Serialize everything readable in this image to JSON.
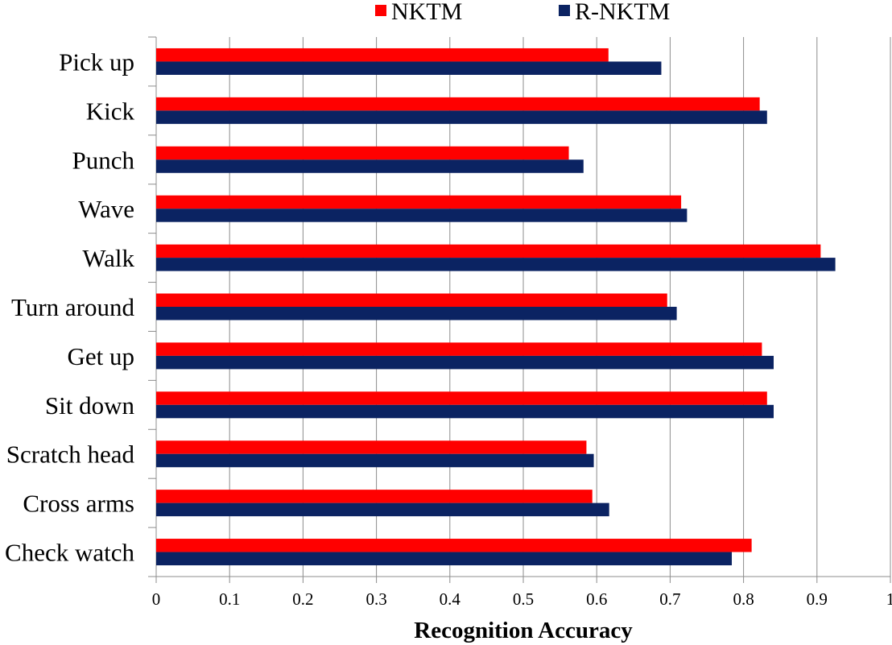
{
  "chart_data": {
    "type": "bar",
    "orientation": "horizontal",
    "categories": [
      "Pick up",
      "Kick",
      "Punch",
      "Wave",
      "Walk",
      "Turn around",
      "Get up",
      "Sit down",
      "Scratch head",
      "Cross arms",
      "Check watch"
    ],
    "series": [
      {
        "name": "NKTM",
        "color": "#ff0000",
        "values": [
          0.616,
          0.822,
          0.562,
          0.715,
          0.905,
          0.696,
          0.825,
          0.832,
          0.586,
          0.594,
          0.811
        ]
      },
      {
        "name": "R-NKTM",
        "color": "#0b2362",
        "values": [
          0.688,
          0.832,
          0.582,
          0.723,
          0.925,
          0.709,
          0.841,
          0.841,
          0.596,
          0.617,
          0.784
        ]
      }
    ],
    "xlabel": "Recognition Accuracy",
    "ylabel": "",
    "xlim": [
      0,
      1
    ],
    "xticks": [
      "0",
      "0.1",
      "0.2",
      "0.3",
      "0.4",
      "0.5",
      "0.6",
      "0.7",
      "0.8",
      "0.9",
      "1"
    ],
    "grid": "vertical",
    "legend_position": "top"
  }
}
